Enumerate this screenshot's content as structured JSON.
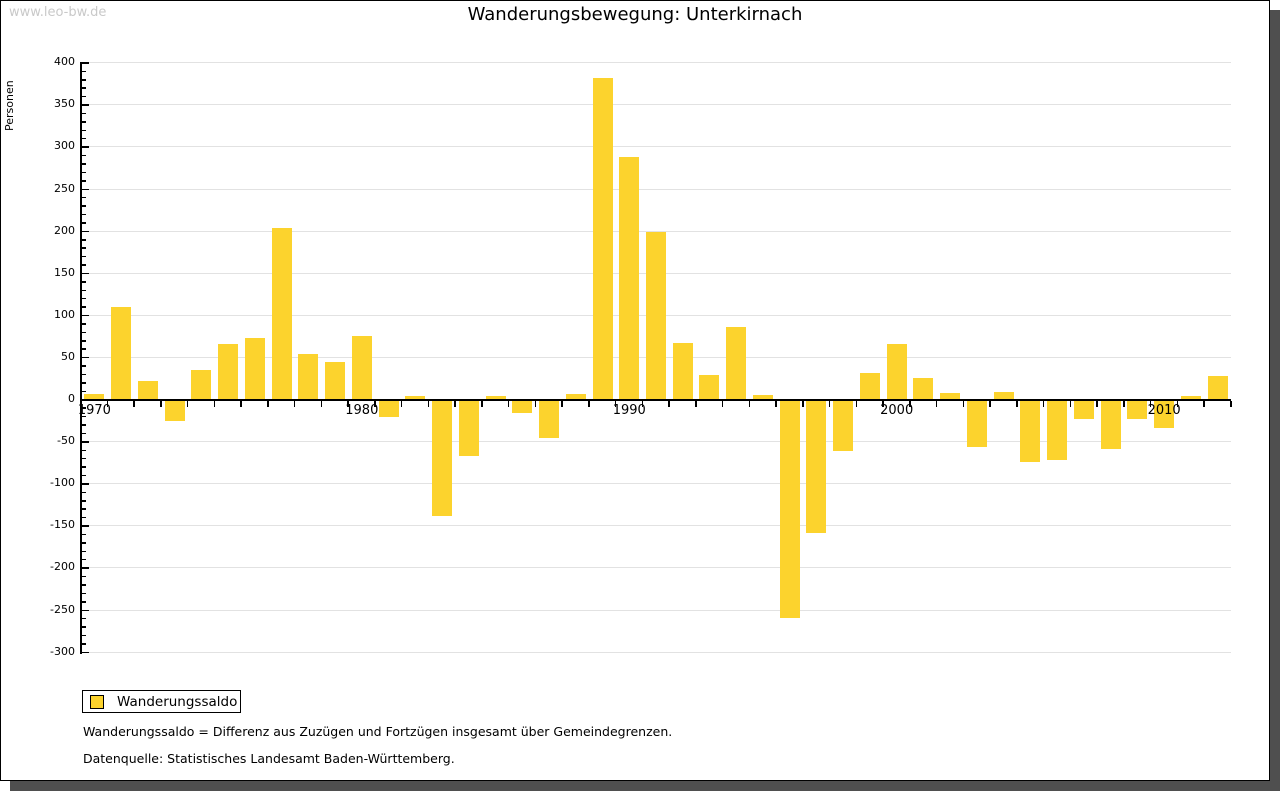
{
  "watermark": "www.leo-bw.de",
  "title": "Wanderungsbewegung: Unterkirnach",
  "legend": {
    "label": "Wanderungssaldo",
    "swatch_color": "#FCD32D"
  },
  "footnotes": [
    "Wanderungssaldo = Differenz aus Zuzügen und Fortzügen insgesamt über Gemeindegrenzen.",
    "Datenquelle: Statistisches Landesamt Baden-Württemberg."
  ],
  "chart_data": {
    "type": "bar",
    "title": "Wanderungsbewegung: Unterkirnach",
    "xlabel": "",
    "ylabel": "Personen",
    "ylim": [
      -300,
      400
    ],
    "ytick_step": 50,
    "yminor_step": 10,
    "grid": "horizontal",
    "legend_position": "bottom-left",
    "bar_color": "#FCD32D",
    "xticks_labeled": [
      1970,
      1980,
      1990,
      2000,
      2010
    ],
    "series_name": "Wanderungssaldo",
    "x": [
      1970,
      1971,
      1972,
      1973,
      1974,
      1975,
      1976,
      1977,
      1978,
      1979,
      1980,
      1981,
      1982,
      1983,
      1984,
      1985,
      1986,
      1987,
      1988,
      1989,
      1990,
      1991,
      1992,
      1993,
      1994,
      1995,
      1996,
      1997,
      1998,
      1999,
      2000,
      2001,
      2002,
      2003,
      2004,
      2005,
      2006,
      2007,
      2008,
      2009,
      2010,
      2011,
      2012
    ],
    "values": [
      6,
      109,
      21,
      -24,
      34,
      65,
      72,
      203,
      54,
      44,
      75,
      -19,
      4,
      -137,
      -65,
      4,
      -14,
      -44,
      6,
      381,
      288,
      198,
      66,
      28,
      86,
      5,
      -258,
      -157,
      -59,
      31,
      65,
      25,
      7,
      -55,
      8,
      -72,
      -70,
      -21,
      -57,
      -21,
      -32,
      3,
      27
    ]
  }
}
